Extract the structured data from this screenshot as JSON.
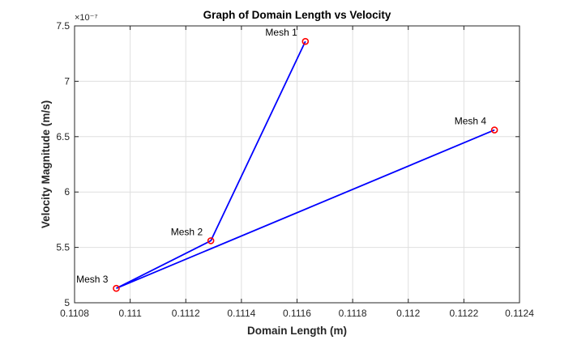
{
  "chart_data": {
    "type": "line",
    "title": "Graph of Domain Length vs Velocity",
    "xlabel": "Domain Length (m)",
    "ylabel": "Velocity Magnitude (m/s)",
    "y_exponent_label": "×10⁻⁷",
    "xlim": [
      0.1108,
      0.1124
    ],
    "ylim": [
      5.0,
      7.5
    ],
    "x_ticks": [
      0.1108,
      0.111,
      0.1112,
      0.1114,
      0.1116,
      0.1118,
      0.112,
      0.1122,
      0.1124
    ],
    "x_tick_labels": [
      "0.1108",
      "0.111",
      "0.1112",
      "0.1114",
      "0.1116",
      "0.1118",
      "0.112",
      "0.1122",
      "0.1124"
    ],
    "y_ticks": [
      5,
      5.5,
      6,
      6.5,
      7,
      7.5
    ],
    "y_tick_labels": [
      "5",
      "5.5",
      "6",
      "6.5",
      "7",
      "7.5"
    ],
    "grid": true,
    "line_color": "#0000ff",
    "marker_color": "#ff0000",
    "marker": "circle",
    "series": [
      {
        "x": [
          0.11163,
          0.11129,
          0.11095,
          0.11231
        ],
        "y": [
          7.36,
          5.56,
          5.13,
          6.56
        ],
        "point_labels": [
          "Mesh 1",
          "Mesh 2",
          "Mesh 3",
          "Mesh 4"
        ]
      }
    ]
  }
}
